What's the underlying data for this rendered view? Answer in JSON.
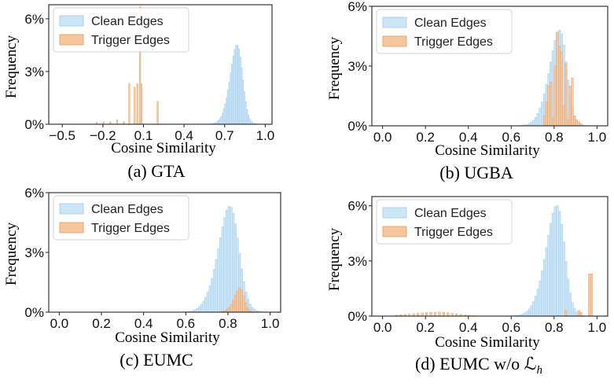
{
  "colors": {
    "clean_fill": "#cde6f7",
    "clean_edge": "#9ecbee",
    "trigger_fill": "#f6c79d",
    "trigger_edge": "#e69a5c"
  },
  "chart_data": [
    {
      "type": "histogram",
      "caption": "(a) GTA",
      "xlabel": "Cosine Similarity",
      "ylabel": "Frequency",
      "xlim": [
        -0.6,
        1.05
      ],
      "ylim": [
        0,
        6.8
      ],
      "xticks": [
        -0.5,
        -0.2,
        0.1,
        0.4,
        0.7,
        1.0
      ],
      "xtick_labels": [
        "−0.5",
        "−0.2",
        "0.1",
        "0.4",
        "0.7",
        "1.0"
      ],
      "yticks": [
        0,
        3,
        6
      ],
      "ytick_labels": [
        "0%",
        "3%",
        "6%"
      ],
      "legend": [
        "Clean Edges",
        "Trigger Edges"
      ],
      "legend_position": "top-left",
      "series": [
        {
          "name": "Clean Edges",
          "kind": "normal",
          "mean": 0.82,
          "sd": 0.065,
          "peak": 4.5,
          "skew": 1.6,
          "xmin": 0.3,
          "xmax": 0.96,
          "binwidth": 0.01
        },
        {
          "name": "Trigger Edges",
          "kind": "bars",
          "binwidth": 0.01,
          "x": [
            -0.25,
            -0.2,
            -0.15,
            -0.1,
            -0.05,
            -0.01,
            0.03,
            0.05,
            0.07,
            0.08,
            0.1,
            0.2
          ],
          "values": [
            0.1,
            0.12,
            0.15,
            0.25,
            0.15,
            2.3,
            2.1,
            2.3,
            6.7,
            2.3,
            0.0,
            1.3
          ]
        }
      ]
    },
    {
      "type": "histogram",
      "caption": "(b) UGBA",
      "xlabel": "Cosine Similarity",
      "ylabel": "Frequency",
      "xlim": [
        -0.05,
        1.05
      ],
      "ylim": [
        0,
        6.0
      ],
      "xticks": [
        0.0,
        0.2,
        0.4,
        0.6,
        0.8,
        1.0
      ],
      "xtick_labels": [
        "0.0",
        "0.2",
        "0.4",
        "0.6",
        "0.8",
        "1.0"
      ],
      "yticks": [
        0,
        3,
        6
      ],
      "ytick_labels": [
        "0%",
        "3%",
        "6%"
      ],
      "legend": [
        "Clean Edges",
        "Trigger Edges"
      ],
      "legend_position": "top-left",
      "series": [
        {
          "name": "Clean Edges",
          "kind": "normal",
          "mean": 0.85,
          "sd": 0.06,
          "peak": 4.8,
          "skew": 2.0,
          "xmin": 0.45,
          "xmax": 0.99,
          "binwidth": 0.01
        },
        {
          "name": "Trigger Edges",
          "kind": "bars",
          "binwidth": 0.01,
          "x": [
            0.75,
            0.76,
            0.77,
            0.78,
            0.79,
            0.8,
            0.81,
            0.82,
            0.83,
            0.84,
            0.85,
            0.86,
            0.87,
            0.88,
            0.89,
            0.9,
            0.91,
            0.92
          ],
          "values": [
            0.5,
            1.2,
            2.0,
            2.2,
            0.4,
            3.0,
            4.7,
            4.0,
            3.7,
            1.0,
            3.1,
            0.3,
            2.0,
            2.4,
            0.5,
            0.3,
            0.2,
            0.1
          ]
        }
      ]
    },
    {
      "type": "histogram",
      "caption": "(c) EUMC",
      "xlabel": "Cosine Similarity",
      "ylabel": "Frequency",
      "xlim": [
        -0.05,
        1.05
      ],
      "ylim": [
        0,
        6.0
      ],
      "xticks": [
        0.0,
        0.2,
        0.4,
        0.6,
        0.8,
        1.0
      ],
      "xtick_labels": [
        "0.0",
        "0.2",
        "0.4",
        "0.6",
        "0.8",
        "1.0"
      ],
      "yticks": [
        0,
        3,
        6
      ],
      "ytick_labels": [
        "0%",
        "3%",
        "6%"
      ],
      "legend": [
        "Clean Edges",
        "Trigger Edges"
      ],
      "legend_position": "top-left",
      "series": [
        {
          "name": "Clean Edges",
          "kind": "normal",
          "mean": 0.84,
          "sd": 0.07,
          "peak": 5.3,
          "skew": 1.7,
          "xmin": 0.38,
          "xmax": 0.98,
          "binwidth": 0.01
        },
        {
          "name": "Trigger Edges",
          "kind": "normal",
          "mean": 0.87,
          "sd": 0.035,
          "peak": 1.2,
          "skew": 1.8,
          "xmin": 0.7,
          "xmax": 0.96,
          "binwidth": 0.01
        }
      ]
    },
    {
      "type": "histogram",
      "caption": "(d) EUMC w/o ℒ",
      "caption_sub": "h",
      "xlabel": "Cosine Similarity",
      "ylabel": "Frequency",
      "xlim": [
        -0.05,
        1.05
      ],
      "ylim": [
        0,
        6.5
      ],
      "xticks": [
        0.0,
        0.2,
        0.4,
        0.6,
        0.8,
        1.0
      ],
      "xtick_labels": [
        "0.0",
        "0.2",
        "0.4",
        "0.6",
        "0.8",
        "1.0"
      ],
      "yticks": [
        0,
        3,
        6
      ],
      "ytick_labels": [
        "0%",
        "3%",
        "6%"
      ],
      "legend": [
        "Clean Edges",
        "Trigger Edges"
      ],
      "legend_position": "top-left",
      "series": [
        {
          "name": "Clean Edges",
          "kind": "normal",
          "mean": 0.84,
          "sd": 0.065,
          "peak": 6.0,
          "skew": 2.0,
          "xmin": 0.3,
          "xmax": 0.98,
          "binwidth": 0.01
        },
        {
          "name": "Trigger Edges",
          "kind": "mixed",
          "binwidth": 0.01,
          "x": [
            0.06,
            0.08,
            0.1,
            0.12,
            0.14,
            0.16,
            0.18,
            0.2,
            0.22,
            0.24,
            0.26,
            0.28,
            0.3,
            0.32,
            0.34,
            0.36,
            0.38,
            0.4,
            0.42,
            0.85,
            0.91,
            0.92,
            0.96,
            0.97
          ],
          "values": [
            0.05,
            0.07,
            0.09,
            0.11,
            0.13,
            0.15,
            0.17,
            0.19,
            0.2,
            0.21,
            0.22,
            0.2,
            0.18,
            0.15,
            0.12,
            0.09,
            0.06,
            0.04,
            0.02,
            0.3,
            0.3,
            0.2,
            2.3,
            2.3
          ]
        }
      ]
    }
  ]
}
